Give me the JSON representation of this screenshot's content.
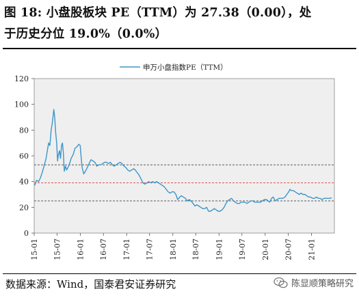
{
  "title": {
    "line1": "图 18:  小盘股板块 PE（TTM）为 27.38（0.00），处",
    "line2": "于历史分位 19.0%（0.0%）"
  },
  "footer": {
    "source": "数据来源：Wind，国泰君安证券研究"
  },
  "watermark": {
    "text": "陈显顺策略研究",
    "icon": "wechat-icon"
  },
  "chart_data": {
    "type": "line",
    "legend": {
      "label": "申万小盘指数PE（TTM）",
      "placement": "top-center"
    },
    "line_color": "#3b95c9",
    "plot_background": "#efefef",
    "grid": false,
    "ylim": [
      0,
      120
    ],
    "yticks": [
      "0",
      "20",
      "40",
      "60",
      "80",
      "100",
      "120"
    ],
    "xlim": [
      "2015-01",
      "2021-07"
    ],
    "xticks": [
      "15-01",
      "15-07",
      "16-01",
      "16-07",
      "17-01",
      "17-07",
      "18-01",
      "18-07",
      "19-01",
      "19-07",
      "20-01",
      "20-07",
      "21-01"
    ],
    "reference_lines": [
      {
        "value": 53,
        "color": "#444444",
        "style": "dashed"
      },
      {
        "value": 39,
        "color": "#d63b3b",
        "style": "dashed"
      },
      {
        "value": 25,
        "color": "#444444",
        "style": "dashed"
      }
    ],
    "series": [
      {
        "values": [
          [
            "2015-01-05",
            37
          ],
          [
            "2015-01-20",
            41
          ],
          [
            "2015-02-05",
            40
          ],
          [
            "2015-02-20",
            43
          ],
          [
            "2015-03-05",
            47
          ],
          [
            "2015-03-20",
            52
          ],
          [
            "2015-04-05",
            58
          ],
          [
            "2015-04-15",
            64
          ],
          [
            "2015-04-25",
            70
          ],
          [
            "2015-05-05",
            68
          ],
          [
            "2015-05-15",
            80
          ],
          [
            "2015-05-25",
            86
          ],
          [
            "2015-06-05",
            96
          ],
          [
            "2015-06-12",
            90
          ],
          [
            "2015-06-20",
            78
          ],
          [
            "2015-06-28",
            70
          ],
          [
            "2015-07-05",
            56
          ],
          [
            "2015-07-10",
            60
          ],
          [
            "2015-07-20",
            64
          ],
          [
            "2015-07-28",
            58
          ],
          [
            "2015-08-05",
            68
          ],
          [
            "2015-08-12",
            70
          ],
          [
            "2015-08-20",
            62
          ],
          [
            "2015-08-27",
            48
          ],
          [
            "2015-09-05",
            52
          ],
          [
            "2015-09-15",
            49
          ],
          [
            "2015-09-25",
            51
          ],
          [
            "2015-10-08",
            54
          ],
          [
            "2015-10-20",
            58
          ],
          [
            "2015-11-05",
            61
          ],
          [
            "2015-11-20",
            66
          ],
          [
            "2015-12-05",
            67
          ],
          [
            "2015-12-20",
            69
          ],
          [
            "2015-12-31",
            68
          ],
          [
            "2016-01-08",
            58
          ],
          [
            "2016-01-15",
            51
          ],
          [
            "2016-01-28",
            46
          ],
          [
            "2016-02-10",
            48
          ],
          [
            "2016-02-25",
            51
          ],
          [
            "2016-03-10",
            54
          ],
          [
            "2016-03-25",
            57
          ],
          [
            "2016-04-10",
            56
          ],
          [
            "2016-04-25",
            55
          ],
          [
            "2016-05-10",
            52
          ],
          [
            "2016-05-25",
            53
          ],
          [
            "2016-06-10",
            53
          ],
          [
            "2016-06-25",
            54
          ],
          [
            "2016-07-10",
            55
          ],
          [
            "2016-07-25",
            55
          ],
          [
            "2016-08-10",
            54
          ],
          [
            "2016-08-25",
            55
          ],
          [
            "2016-09-10",
            53
          ],
          [
            "2016-09-25",
            52
          ],
          [
            "2016-10-10",
            53
          ],
          [
            "2016-10-25",
            54
          ],
          [
            "2016-11-10",
            55
          ],
          [
            "2016-11-25",
            54
          ],
          [
            "2016-12-10",
            52
          ],
          [
            "2016-12-25",
            51
          ],
          [
            "2017-01-10",
            49
          ],
          [
            "2017-01-25",
            48
          ],
          [
            "2017-02-10",
            49
          ],
          [
            "2017-02-25",
            50
          ],
          [
            "2017-03-10",
            49
          ],
          [
            "2017-03-25",
            47
          ],
          [
            "2017-04-10",
            45
          ],
          [
            "2017-04-25",
            42
          ],
          [
            "2017-05-10",
            39
          ],
          [
            "2017-05-25",
            38
          ],
          [
            "2017-06-10",
            39
          ],
          [
            "2017-06-25",
            40
          ],
          [
            "2017-07-10",
            39
          ],
          [
            "2017-07-25",
            40
          ],
          [
            "2017-08-10",
            39
          ],
          [
            "2017-08-25",
            40
          ],
          [
            "2017-09-10",
            39
          ],
          [
            "2017-09-25",
            38
          ],
          [
            "2017-10-10",
            37
          ],
          [
            "2017-10-25",
            36
          ],
          [
            "2017-11-10",
            34
          ],
          [
            "2017-11-25",
            32
          ],
          [
            "2017-12-10",
            31
          ],
          [
            "2017-12-25",
            32
          ],
          [
            "2018-01-10",
            32
          ],
          [
            "2018-01-25",
            30
          ],
          [
            "2018-02-08",
            26
          ],
          [
            "2018-02-25",
            28
          ],
          [
            "2018-03-10",
            29
          ],
          [
            "2018-03-25",
            28
          ],
          [
            "2018-04-10",
            27
          ],
          [
            "2018-04-25",
            25
          ],
          [
            "2018-05-10",
            26
          ],
          [
            "2018-05-25",
            25
          ],
          [
            "2018-06-10",
            23
          ],
          [
            "2018-06-25",
            21
          ],
          [
            "2018-07-10",
            22
          ],
          [
            "2018-07-25",
            21
          ],
          [
            "2018-08-10",
            20
          ],
          [
            "2018-08-25",
            19
          ],
          [
            "2018-09-10",
            19
          ],
          [
            "2018-09-25",
            20
          ],
          [
            "2018-10-10",
            17
          ],
          [
            "2018-10-25",
            17
          ],
          [
            "2018-11-10",
            18
          ],
          [
            "2018-11-25",
            19
          ],
          [
            "2018-12-10",
            18
          ],
          [
            "2018-12-25",
            17
          ],
          [
            "2019-01-10",
            17
          ],
          [
            "2019-01-25",
            18
          ],
          [
            "2019-02-10",
            20
          ],
          [
            "2019-02-25",
            23
          ],
          [
            "2019-03-10",
            25
          ],
          [
            "2019-03-25",
            26
          ],
          [
            "2019-04-10",
            27
          ],
          [
            "2019-04-25",
            25
          ],
          [
            "2019-05-10",
            24
          ],
          [
            "2019-05-25",
            23
          ],
          [
            "2019-06-10",
            23
          ],
          [
            "2019-06-25",
            24
          ],
          [
            "2019-07-10",
            24
          ],
          [
            "2019-07-25",
            24
          ],
          [
            "2019-08-10",
            23
          ],
          [
            "2019-08-25",
            24
          ],
          [
            "2019-09-10",
            25
          ],
          [
            "2019-09-25",
            25
          ],
          [
            "2019-10-10",
            24
          ],
          [
            "2019-10-25",
            24
          ],
          [
            "2019-11-10",
            24
          ],
          [
            "2019-11-25",
            24
          ],
          [
            "2019-12-10",
            25
          ],
          [
            "2019-12-25",
            26
          ],
          [
            "2020-01-10",
            26
          ],
          [
            "2020-01-25",
            25
          ],
          [
            "2020-02-05",
            24
          ],
          [
            "2020-02-20",
            27
          ],
          [
            "2020-03-05",
            28
          ],
          [
            "2020-03-20",
            25
          ],
          [
            "2020-04-05",
            26
          ],
          [
            "2020-04-20",
            27
          ],
          [
            "2020-05-05",
            27
          ],
          [
            "2020-05-20",
            27
          ],
          [
            "2020-06-05",
            28
          ],
          [
            "2020-06-20",
            30
          ],
          [
            "2020-07-05",
            32
          ],
          [
            "2020-07-15",
            34
          ],
          [
            "2020-07-25",
            33
          ],
          [
            "2020-08-10",
            33
          ],
          [
            "2020-08-25",
            32
          ],
          [
            "2020-09-10",
            31
          ],
          [
            "2020-09-25",
            30
          ],
          [
            "2020-10-10",
            31
          ],
          [
            "2020-10-25",
            30
          ],
          [
            "2020-11-10",
            30
          ],
          [
            "2020-11-25",
            29
          ],
          [
            "2020-12-10",
            28
          ],
          [
            "2020-12-25",
            28
          ],
          [
            "2021-01-10",
            27
          ],
          [
            "2021-01-25",
            27
          ],
          [
            "2021-02-10",
            28
          ],
          [
            "2021-02-25",
            27
          ],
          [
            "2021-03-10",
            27
          ],
          [
            "2021-03-25",
            26
          ],
          [
            "2021-04-10",
            27
          ],
          [
            "2021-04-25",
            27
          ],
          [
            "2021-05-10",
            27
          ],
          [
            "2021-05-25",
            27
          ],
          [
            "2021-06-10",
            27.4
          ]
        ]
      }
    ]
  }
}
